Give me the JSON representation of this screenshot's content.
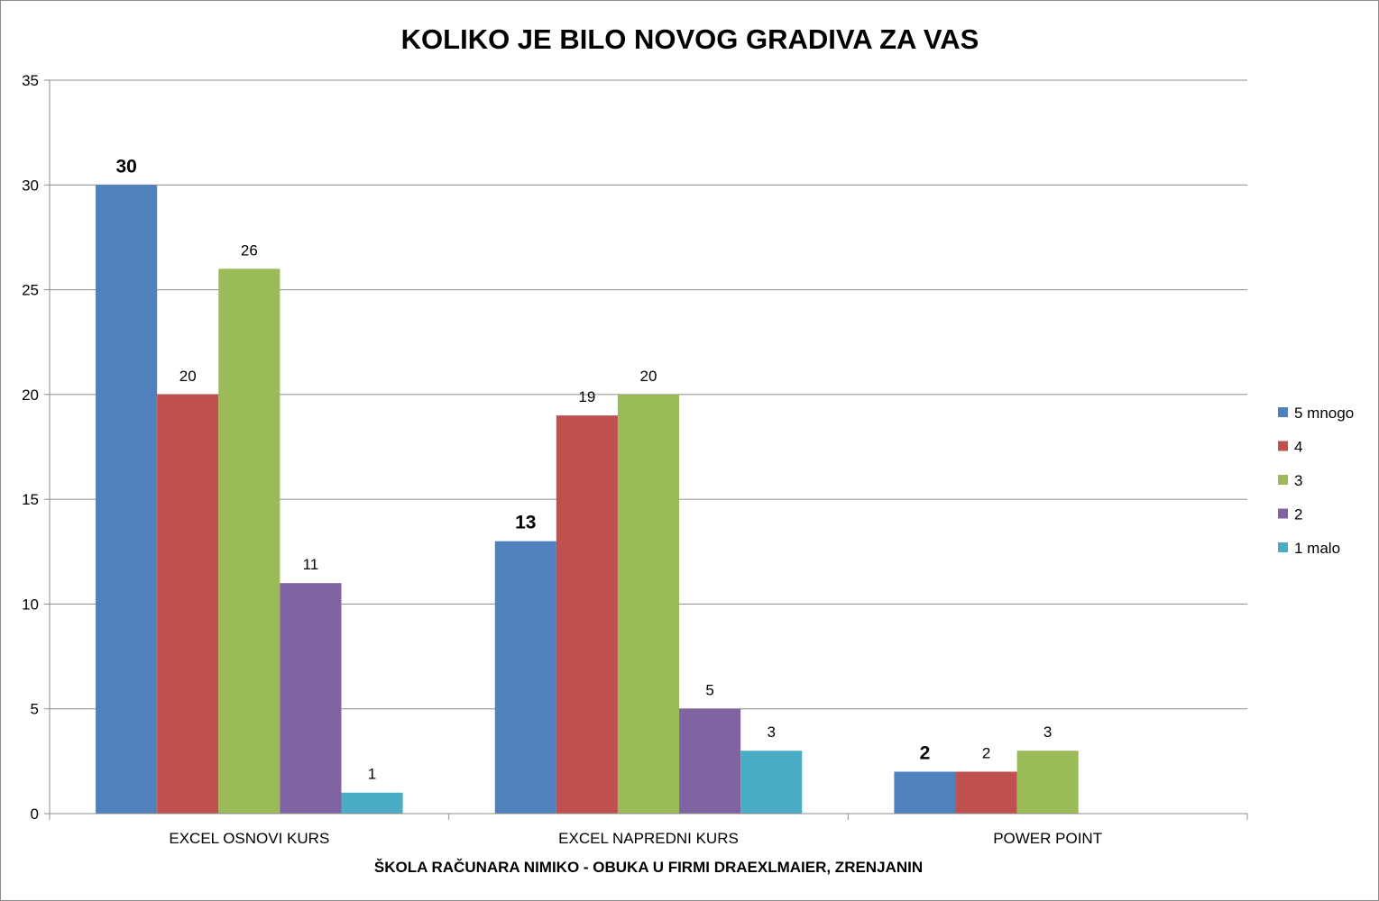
{
  "chart_data": {
    "type": "bar",
    "title": "KOLIKO JE BILO NOVOG GRADIVA ZA VAS",
    "xlabel": "ŠKOLA RAČUNARA NIMIKO - OBUKA U FIRMI DRAEXLMAIER, ZRENJANIN",
    "ylabel": "",
    "ylim": [
      0,
      35
    ],
    "yticks": [
      0,
      5,
      10,
      15,
      20,
      25,
      30,
      35
    ],
    "grid": true,
    "legend": "right",
    "categories": [
      "EXCEL OSNOVI KURS",
      "EXCEL NAPREDNI KURS",
      "POWER POINT"
    ],
    "series": [
      {
        "name": "5 mnogo",
        "color": "#4f81bd",
        "values": [
          30,
          13,
          2
        ],
        "bold_labels": true
      },
      {
        "name": "4",
        "color": "#c0504d",
        "values": [
          20,
          19,
          2
        ],
        "bold_labels": false
      },
      {
        "name": "3",
        "color": "#9bbb59",
        "values": [
          26,
          20,
          3
        ],
        "bold_labels": false
      },
      {
        "name": "2",
        "color": "#8064a2",
        "values": [
          11,
          5,
          null
        ],
        "bold_labels": false
      },
      {
        "name": "1 malo",
        "color": "#4bacc6",
        "values": [
          1,
          3,
          null
        ],
        "bold_labels": false
      }
    ]
  }
}
